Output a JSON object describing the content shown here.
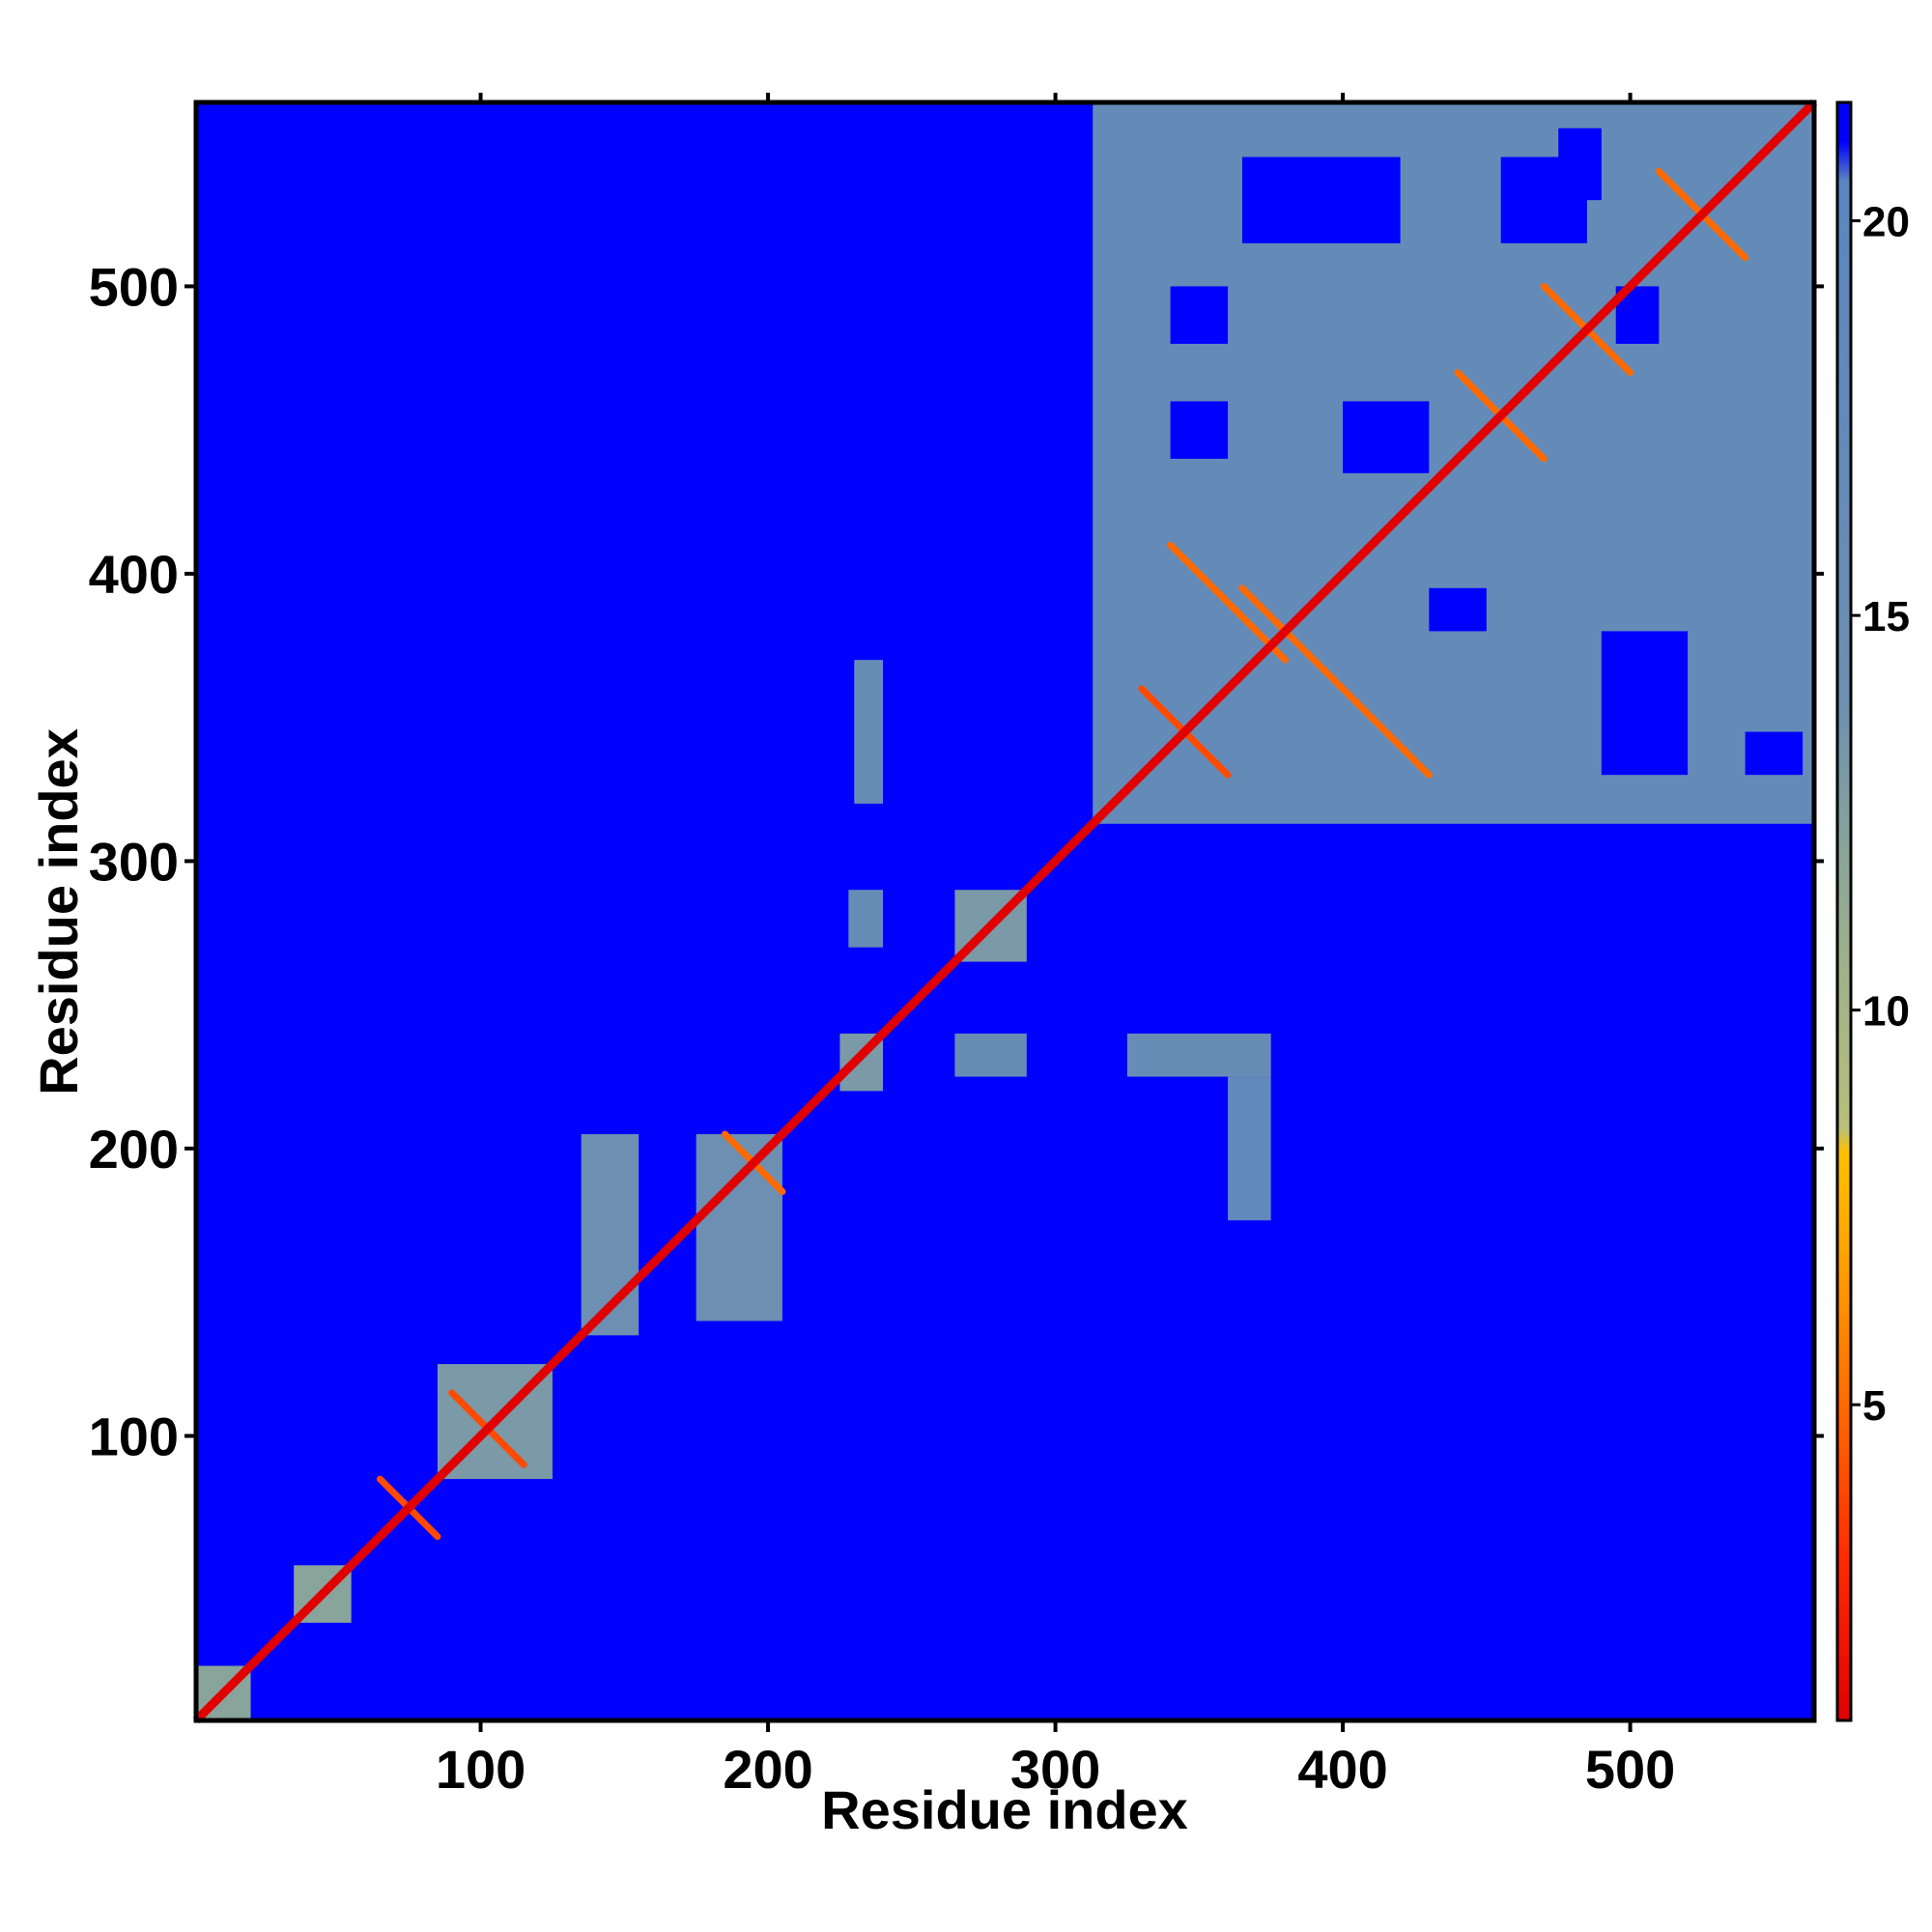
{
  "chart_data": {
    "type": "heatmap",
    "title": "",
    "xlabel": "Residue index",
    "ylabel": "Residue index",
    "xlim": [
      1,
      564
    ],
    "ylim": [
      1,
      564
    ],
    "x_ticks": [
      100,
      200,
      300,
      400,
      500
    ],
    "y_ticks": [
      100,
      200,
      300,
      400,
      500
    ],
    "colorbar": {
      "ticks": [
        5,
        10,
        15,
        20
      ],
      "range": [
        1,
        21.5
      ],
      "background_value": 21.5,
      "stops": [
        {
          "value": 1,
          "color": "#e00000"
        },
        {
          "value": 3,
          "color": "#ff2a00"
        },
        {
          "value": 5,
          "color": "#ff6a00"
        },
        {
          "value": 7,
          "color": "#ffa500"
        },
        {
          "value": 8.2,
          "color": "#ffc000"
        },
        {
          "value": 8.5,
          "color": "#b9bf7a"
        },
        {
          "value": 11,
          "color": "#98ae8e"
        },
        {
          "value": 14,
          "color": "#6c8fb2"
        },
        {
          "value": 20.5,
          "color": "#5a86c0"
        },
        {
          "value": 21,
          "color": "#0000ff"
        }
      ]
    },
    "diagonal": {
      "from": 1,
      "to": 564,
      "value": 1
    },
    "blocks": [
      {
        "x": [
          313,
          564
        ],
        "y": [
          313,
          564
        ],
        "value": 17
      },
      {
        "x": [
          1,
          20
        ],
        "y": [
          1,
          20
        ],
        "value": 12
      },
      {
        "x": [
          35,
          55
        ],
        "y": [
          35,
          55
        ],
        "value": 12
      },
      {
        "x": [
          85,
          125
        ],
        "y": [
          85,
          125
        ],
        "value": 13
      },
      {
        "x": [
          135,
          155
        ],
        "y": [
          135,
          205
        ],
        "value": 14
      },
      {
        "x": [
          175,
          205
        ],
        "y": [
          140,
          205
        ],
        "value": 14
      },
      {
        "x": [
          225,
          240
        ],
        "y": [
          220,
          240
        ],
        "value": 13
      },
      {
        "x": [
          265,
          290
        ],
        "y": [
          265,
          290
        ],
        "value": 13
      },
      {
        "x": [
          228,
          240
        ],
        "y": [
          270,
          290
        ],
        "value": 16
      },
      {
        "x": [
          230,
          240
        ],
        "y": [
          320,
          370
        ],
        "value": 16
      },
      {
        "x": [
          265,
          290
        ],
        "y": [
          225,
          240
        ],
        "value": 16
      },
      {
        "x": [
          325,
          375
        ],
        "y": [
          225,
          240
        ],
        "value": 16
      },
      {
        "x": [
          360,
          375
        ],
        "y": [
          175,
          225
        ],
        "value": 18
      }
    ],
    "voids": [
      {
        "x": [
          365,
          420
        ],
        "y": [
          515,
          545
        ],
        "value": 21.5
      },
      {
        "x": [
          455,
          485
        ],
        "y": [
          515,
          545
        ],
        "value": 21.5
      },
      {
        "x": [
          340,
          360
        ],
        "y": [
          440,
          460
        ],
        "value": 21.5
      },
      {
        "x": [
          400,
          430
        ],
        "y": [
          435,
          460
        ],
        "value": 21.5
      },
      {
        "x": [
          495,
          510
        ],
        "y": [
          480,
          500
        ],
        "value": 21.5
      },
      {
        "x": [
          490,
          520
        ],
        "y": [
          330,
          380
        ],
        "value": 21.5
      },
      {
        "x": [
          340,
          360
        ],
        "y": [
          480,
          500
        ],
        "value": 21.5
      },
      {
        "x": [
          430,
          450
        ],
        "y": [
          380,
          395
        ],
        "value": 21.5
      },
      {
        "x": [
          540,
          560
        ],
        "y": [
          330,
          345
        ],
        "value": 21.5
      },
      {
        "x": [
          475,
          490
        ],
        "y": [
          530,
          555
        ],
        "value": 21.5
      }
    ],
    "contact_lines": [
      {
        "x": [
          330,
          360
        ],
        "y": [
          360,
          330
        ],
        "value": 4
      },
      {
        "x": [
          340,
          380
        ],
        "y": [
          410,
          370
        ],
        "value": 5
      },
      {
        "x": [
          395,
          430
        ],
        "y": [
          365,
          330
        ],
        "value": 5
      },
      {
        "x": [
          440,
          470
        ],
        "y": [
          470,
          440
        ],
        "value": 5
      },
      {
        "x": [
          470,
          500
        ],
        "y": [
          500,
          470
        ],
        "value": 5
      },
      {
        "x": [
          510,
          540
        ],
        "y": [
          540,
          510
        ],
        "value": 5
      },
      {
        "x": [
          90,
          115
        ],
        "y": [
          115,
          90
        ],
        "value": 4
      },
      {
        "x": [
          65,
          85
        ],
        "y": [
          85,
          65
        ],
        "value": 4
      },
      {
        "x": [
          185,
          205
        ],
        "y": [
          205,
          185
        ],
        "value": 5
      },
      {
        "x": [
          365,
          395
        ],
        "y": [
          395,
          365
        ],
        "value": 5
      }
    ]
  }
}
